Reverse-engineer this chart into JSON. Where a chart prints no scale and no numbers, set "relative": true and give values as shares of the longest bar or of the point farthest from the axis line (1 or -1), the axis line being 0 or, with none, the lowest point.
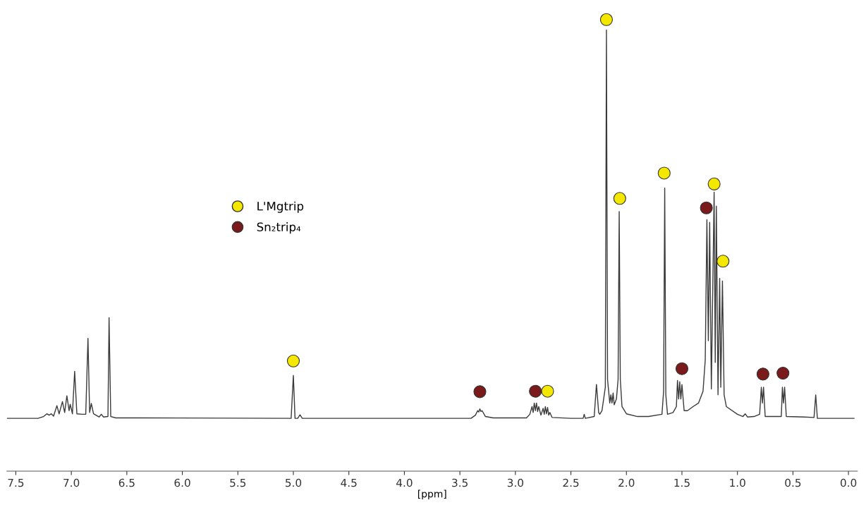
{
  "chart_data": {
    "type": "line",
    "xlabel": "[ppm]",
    "relative": true,
    "xlim": [
      7.58,
      -0.08
    ],
    "xticks": [
      {
        "value": 7.5,
        "label": "7.5"
      },
      {
        "value": 7.0,
        "label": "7.0"
      },
      {
        "value": 6.5,
        "label": "6.5"
      },
      {
        "value": 6.0,
        "label": "6.0"
      },
      {
        "value": 5.5,
        "label": "5.5"
      },
      {
        "value": 5.0,
        "label": "5.0"
      },
      {
        "value": 4.5,
        "label": "4.5"
      },
      {
        "value": 4.0,
        "label": "4.0"
      },
      {
        "value": 3.5,
        "label": "3.5"
      },
      {
        "value": 3.0,
        "label": "3.0"
      },
      {
        "value": 2.5,
        "label": "2.5"
      },
      {
        "value": 2.0,
        "label": "2.0"
      },
      {
        "value": 1.5,
        "label": "1.5"
      },
      {
        "value": 1.0,
        "label": "1.0"
      },
      {
        "value": 0.5,
        "label": "0.5"
      },
      {
        "value": 0.0,
        "label": "0.0"
      }
    ],
    "tick_labels": "x",
    "grid": false,
    "legend": "left",
    "series": [
      {
        "color": "#3a3a3a",
        "marker": "none",
        "line_style": "solid",
        "x": [
          7.58,
          7.3,
          7.25,
          7.22,
          7.2,
          7.18,
          7.16,
          7.13,
          7.11,
          7.08,
          7.06,
          7.04,
          7.02,
          7.01,
          6.99,
          6.97,
          6.95,
          6.9,
          6.87,
          6.85,
          6.835,
          6.82,
          6.8,
          6.75,
          6.73,
          6.71,
          6.67,
          6.66,
          6.645,
          6.6,
          6.4,
          5.02,
          5.0,
          4.985,
          4.96,
          4.94,
          4.92,
          3.4,
          3.36,
          3.34,
          3.33,
          3.32,
          3.31,
          3.3,
          3.27,
          3.2,
          2.9,
          2.87,
          2.85,
          2.84,
          2.83,
          2.82,
          2.81,
          2.8,
          2.79,
          2.77,
          2.75,
          2.74,
          2.73,
          2.72,
          2.71,
          2.7,
          2.69,
          2.67,
          2.5,
          2.39,
          2.38,
          2.37,
          2.29,
          2.27,
          2.25,
          2.24,
          2.22,
          2.19,
          2.18,
          2.17,
          2.15,
          2.14,
          2.13,
          2.12,
          2.11,
          2.09,
          2.075,
          2.065,
          2.055,
          2.04,
          2.0,
          1.9,
          1.8,
          1.68,
          1.665,
          1.655,
          1.645,
          1.63,
          1.58,
          1.55,
          1.54,
          1.53,
          1.52,
          1.51,
          1.5,
          1.48,
          1.45,
          1.4,
          1.35,
          1.31,
          1.29,
          1.275,
          1.262,
          1.25,
          1.235,
          1.21,
          1.2,
          1.19,
          1.175,
          1.16,
          1.15,
          1.135,
          1.12,
          1.1,
          1.0,
          0.95,
          0.93,
          0.91,
          0.85,
          0.8,
          0.785,
          0.775,
          0.765,
          0.75,
          0.7,
          0.605,
          0.595,
          0.585,
          0.575,
          0.56,
          0.4,
          0.31,
          0.295,
          0.28,
          0.1,
          -0.05
        ],
        "values": [
          0.117,
          0.117,
          0.121,
          0.127,
          0.124,
          0.127,
          0.122,
          0.145,
          0.127,
          0.154,
          0.13,
          0.167,
          0.134,
          0.148,
          0.127,
          0.221,
          0.127,
          0.126,
          0.126,
          0.294,
          0.13,
          0.15,
          0.127,
          0.12,
          0.126,
          0.12,
          0.121,
          0.34,
          0.121,
          0.118,
          0.118,
          0.117,
          0.212,
          0.117,
          0.117,
          0.125,
          0.117,
          0.117,
          0.124,
          0.134,
          0.131,
          0.138,
          0.132,
          0.134,
          0.121,
          0.118,
          0.118,
          0.126,
          0.143,
          0.13,
          0.151,
          0.134,
          0.151,
          0.132,
          0.143,
          0.124,
          0.139,
          0.126,
          0.143,
          0.127,
          0.141,
          0.124,
          0.13,
          0.119,
          0.117,
          0.117,
          0.126,
          0.117,
          0.121,
          0.192,
          0.13,
          0.126,
          0.134,
          0.186,
          0.977,
          0.203,
          0.151,
          0.169,
          0.151,
          0.173,
          0.147,
          0.16,
          0.203,
          0.575,
          0.203,
          0.143,
          0.127,
          0.121,
          0.121,
          0.126,
          0.177,
          0.627,
          0.169,
          0.126,
          0.13,
          0.143,
          0.201,
          0.16,
          0.198,
          0.16,
          0.192,
          0.134,
          0.134,
          0.143,
          0.151,
          0.177,
          0.246,
          0.557,
          0.289,
          0.551,
          0.182,
          0.618,
          0.241,
          0.587,
          0.169,
          0.427,
          0.186,
          0.421,
          0.169,
          0.143,
          0.126,
          0.121,
          0.127,
          0.12,
          0.121,
          0.126,
          0.186,
          0.151,
          0.186,
          0.121,
          0.121,
          0.121,
          0.186,
          0.151,
          0.186,
          0.121,
          0.12,
          0.119,
          0.169,
          0.117,
          0.117,
          0.117
        ]
      },
      {
        "type": "scatter",
        "name": "L'Mgtrip",
        "color": "#f5e800",
        "marker": "circle",
        "x": [
          5.0,
          2.71,
          2.18,
          2.06,
          1.66,
          1.21,
          1.13
        ],
        "values": [
          0.244,
          0.177,
          1.0,
          0.604,
          0.66,
          0.636,
          0.465
        ]
      },
      {
        "type": "scatter",
        "name": "Sn₂trip₄",
        "color": "#7b1a1a",
        "marker": "circle",
        "x": [
          3.32,
          2.82,
          1.28,
          1.5,
          0.77,
          0.59
        ],
        "values": [
          0.176,
          0.177,
          0.583,
          0.227,
          0.215,
          0.217
        ]
      }
    ]
  }
}
